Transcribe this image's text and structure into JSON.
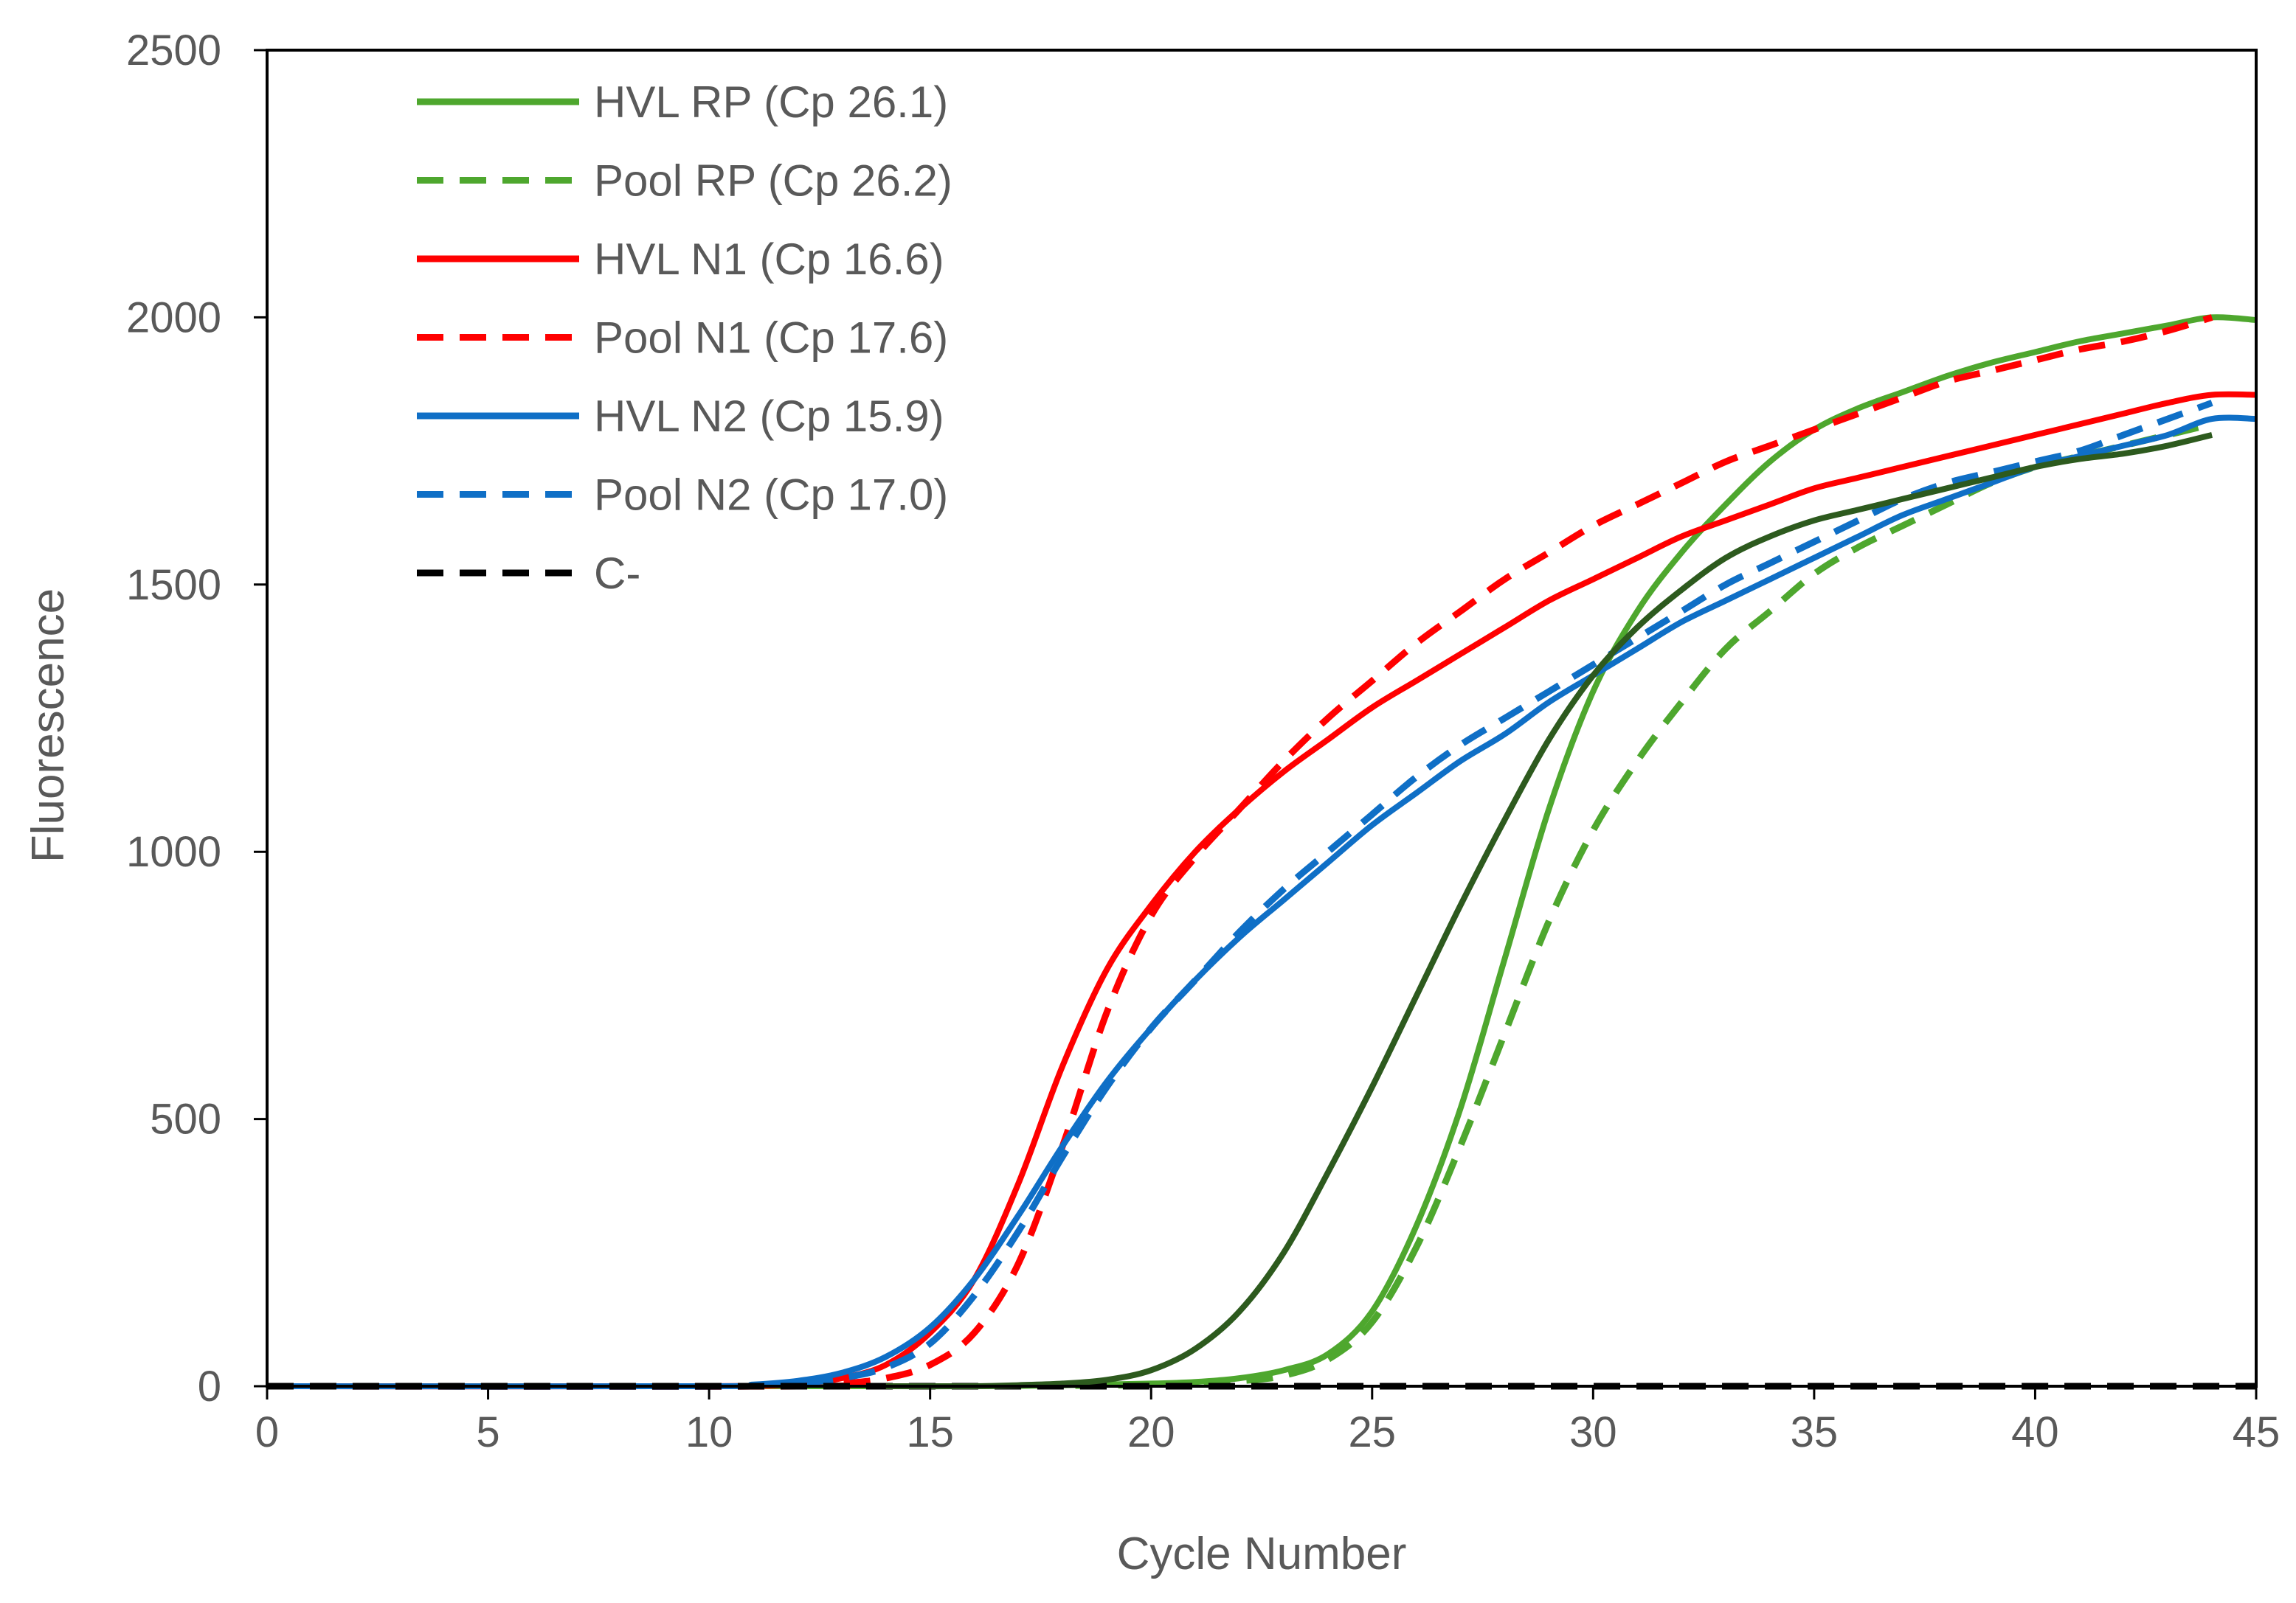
{
  "chart_data": {
    "type": "line",
    "title": "",
    "xlabel": "Cycle Number",
    "ylabel": "Fluorescence",
    "xlim": [
      0,
      45
    ],
    "ylim": [
      0,
      2500
    ],
    "xticks": [
      0,
      5,
      10,
      15,
      20,
      25,
      30,
      35,
      40,
      45
    ],
    "yticks": [
      0,
      500,
      1000,
      1500,
      2000,
      2500
    ],
    "grid": false,
    "legend_position": "top-left",
    "colors": {
      "green": "#4ea72e",
      "dark_green": "#2d5a1e",
      "red": "#ff0000",
      "blue": "#0f6fc6",
      "black": "#000000",
      "axis_text": "#595959"
    },
    "series": [
      {
        "name": "HVL RP (Cp 26.1)",
        "color": "#4ea72e",
        "dash": "solid",
        "in_legend": true,
        "points": [
          [
            0,
            0
          ],
          [
            10,
            0
          ],
          [
            16,
            0
          ],
          [
            18,
            2
          ],
          [
            20,
            5
          ],
          [
            21,
            8
          ],
          [
            22,
            15
          ],
          [
            23,
            30
          ],
          [
            24,
            60
          ],
          [
            25,
            140
          ],
          [
            26,
            300
          ],
          [
            27,
            520
          ],
          [
            28,
            800
          ],
          [
            29,
            1080
          ],
          [
            30,
            1300
          ],
          [
            31,
            1450
          ],
          [
            32,
            1560
          ],
          [
            33,
            1650
          ],
          [
            34,
            1730
          ],
          [
            35,
            1790
          ],
          [
            36,
            1830
          ],
          [
            37,
            1860
          ],
          [
            38,
            1890
          ],
          [
            39,
            1915
          ],
          [
            40,
            1935
          ],
          [
            41,
            1955
          ],
          [
            42,
            1970
          ],
          [
            43,
            1985
          ],
          [
            44,
            2000
          ],
          [
            45,
            1995
          ]
        ]
      },
      {
        "name": "Pool RP (Cp 26.2)",
        "color": "#4ea72e",
        "dash": "dashed",
        "in_legend": true,
        "points": [
          [
            0,
            0
          ],
          [
            16,
            0
          ],
          [
            18,
            1
          ],
          [
            20,
            3
          ],
          [
            22,
            10
          ],
          [
            23,
            20
          ],
          [
            24,
            50
          ],
          [
            25,
            120
          ],
          [
            26,
            260
          ],
          [
            27,
            450
          ],
          [
            28,
            660
          ],
          [
            29,
            870
          ],
          [
            30,
            1040
          ],
          [
            31,
            1170
          ],
          [
            32,
            1280
          ],
          [
            33,
            1380
          ],
          [
            34,
            1450
          ],
          [
            35,
            1520
          ],
          [
            36,
            1570
          ],
          [
            37,
            1610
          ],
          [
            38,
            1650
          ],
          [
            39,
            1690
          ],
          [
            40,
            1720
          ],
          [
            41,
            1740
          ],
          [
            42,
            1760
          ],
          [
            43,
            1780
          ],
          [
            44,
            1800
          ]
        ]
      },
      {
        "name": "HVL N1 (Cp 16.6)",
        "color": "#ff0000",
        "dash": "solid",
        "in_legend": true,
        "points": [
          [
            0,
            0
          ],
          [
            10,
            0
          ],
          [
            12,
            5
          ],
          [
            13,
            15
          ],
          [
            14,
            40
          ],
          [
            15,
            100
          ],
          [
            16,
            200
          ],
          [
            17,
            380
          ],
          [
            18,
            600
          ],
          [
            19,
            780
          ],
          [
            20,
            900
          ],
          [
            21,
            1000
          ],
          [
            22,
            1080
          ],
          [
            23,
            1150
          ],
          [
            24,
            1210
          ],
          [
            25,
            1270
          ],
          [
            26,
            1320
          ],
          [
            27,
            1370
          ],
          [
            28,
            1420
          ],
          [
            29,
            1470
          ],
          [
            30,
            1510
          ],
          [
            31,
            1550
          ],
          [
            32,
            1590
          ],
          [
            33,
            1620
          ],
          [
            34,
            1650
          ],
          [
            35,
            1680
          ],
          [
            36,
            1700
          ],
          [
            37,
            1720
          ],
          [
            38,
            1740
          ],
          [
            39,
            1760
          ],
          [
            40,
            1780
          ],
          [
            41,
            1800
          ],
          [
            42,
            1820
          ],
          [
            43,
            1840
          ],
          [
            44,
            1855
          ],
          [
            45,
            1855
          ]
        ]
      },
      {
        "name": "Pool N1 (Cp 17.6)",
        "color": "#ff0000",
        "dash": "dashed",
        "in_legend": true,
        "points": [
          [
            0,
            0
          ],
          [
            12,
            0
          ],
          [
            13,
            5
          ],
          [
            14,
            15
          ],
          [
            15,
            40
          ],
          [
            16,
            100
          ],
          [
            17,
            230
          ],
          [
            18,
            450
          ],
          [
            19,
            700
          ],
          [
            20,
            880
          ],
          [
            21,
            990
          ],
          [
            22,
            1080
          ],
          [
            23,
            1170
          ],
          [
            24,
            1250
          ],
          [
            25,
            1320
          ],
          [
            26,
            1390
          ],
          [
            27,
            1450
          ],
          [
            28,
            1510
          ],
          [
            29,
            1560
          ],
          [
            30,
            1610
          ],
          [
            31,
            1650
          ],
          [
            32,
            1690
          ],
          [
            33,
            1730
          ],
          [
            34,
            1760
          ],
          [
            35,
            1790
          ],
          [
            36,
            1820
          ],
          [
            37,
            1850
          ],
          [
            38,
            1880
          ],
          [
            39,
            1900
          ],
          [
            40,
            1920
          ],
          [
            41,
            1940
          ],
          [
            42,
            1955
          ],
          [
            43,
            1975
          ],
          [
            44,
            2000
          ]
        ]
      },
      {
        "name": "HVL N2 (Cp 15.9)",
        "color": "#0f6fc6",
        "dash": "solid",
        "in_legend": true,
        "points": [
          [
            0,
            0
          ],
          [
            10,
            0
          ],
          [
            11,
            3
          ],
          [
            12,
            10
          ],
          [
            13,
            25
          ],
          [
            14,
            55
          ],
          [
            15,
            110
          ],
          [
            16,
            200
          ],
          [
            17,
            320
          ],
          [
            18,
            450
          ],
          [
            19,
            570
          ],
          [
            20,
            670
          ],
          [
            21,
            760
          ],
          [
            22,
            840
          ],
          [
            23,
            910
          ],
          [
            24,
            980
          ],
          [
            25,
            1050
          ],
          [
            26,
            1110
          ],
          [
            27,
            1170
          ],
          [
            28,
            1220
          ],
          [
            29,
            1280
          ],
          [
            30,
            1330
          ],
          [
            31,
            1380
          ],
          [
            32,
            1430
          ],
          [
            33,
            1470
          ],
          [
            34,
            1510
          ],
          [
            35,
            1550
          ],
          [
            36,
            1590
          ],
          [
            37,
            1630
          ],
          [
            38,
            1660
          ],
          [
            39,
            1690
          ],
          [
            40,
            1720
          ],
          [
            41,
            1740
          ],
          [
            42,
            1760
          ],
          [
            43,
            1780
          ],
          [
            44,
            1810
          ],
          [
            45,
            1810
          ]
        ]
      },
      {
        "name": "Pool N2 (Cp 17.0)",
        "color": "#0f6fc6",
        "dash": "dashed",
        "in_legend": true,
        "points": [
          [
            0,
            0
          ],
          [
            11,
            0
          ],
          [
            12,
            5
          ],
          [
            13,
            15
          ],
          [
            14,
            35
          ],
          [
            15,
            80
          ],
          [
            16,
            170
          ],
          [
            17,
            290
          ],
          [
            18,
            430
          ],
          [
            19,
            560
          ],
          [
            20,
            670
          ],
          [
            21,
            760
          ],
          [
            22,
            850
          ],
          [
            23,
            930
          ],
          [
            24,
            1000
          ],
          [
            25,
            1070
          ],
          [
            26,
            1140
          ],
          [
            27,
            1200
          ],
          [
            28,
            1250
          ],
          [
            29,
            1300
          ],
          [
            30,
            1350
          ],
          [
            31,
            1400
          ],
          [
            32,
            1450
          ],
          [
            33,
            1500
          ],
          [
            34,
            1540
          ],
          [
            35,
            1580
          ],
          [
            36,
            1620
          ],
          [
            37,
            1660
          ],
          [
            38,
            1690
          ],
          [
            39,
            1710
          ],
          [
            40,
            1730
          ],
          [
            41,
            1750
          ],
          [
            42,
            1780
          ],
          [
            43,
            1810
          ],
          [
            44,
            1840
          ]
        ]
      },
      {
        "name": "C-",
        "color": "#000000",
        "dash": "dashed",
        "in_legend": true,
        "points": [
          [
            0,
            0
          ],
          [
            45,
            0
          ]
        ]
      },
      {
        "name": "",
        "color": "#2d5a1e",
        "dash": "solid",
        "in_legend": false,
        "points": [
          [
            14,
            0
          ],
          [
            16,
            0
          ],
          [
            17,
            2
          ],
          [
            18,
            5
          ],
          [
            19,
            12
          ],
          [
            20,
            30
          ],
          [
            21,
            70
          ],
          [
            22,
            140
          ],
          [
            23,
            250
          ],
          [
            24,
            400
          ],
          [
            25,
            560
          ],
          [
            26,
            730
          ],
          [
            27,
            900
          ],
          [
            28,
            1060
          ],
          [
            29,
            1210
          ],
          [
            30,
            1330
          ],
          [
            31,
            1420
          ],
          [
            32,
            1490
          ],
          [
            33,
            1550
          ],
          [
            34,
            1590
          ],
          [
            35,
            1620
          ],
          [
            36,
            1640
          ],
          [
            37,
            1660
          ],
          [
            38,
            1680
          ],
          [
            39,
            1700
          ],
          [
            40,
            1720
          ],
          [
            41,
            1735
          ],
          [
            42,
            1745
          ],
          [
            43,
            1760
          ],
          [
            44,
            1780
          ]
        ]
      }
    ]
  }
}
